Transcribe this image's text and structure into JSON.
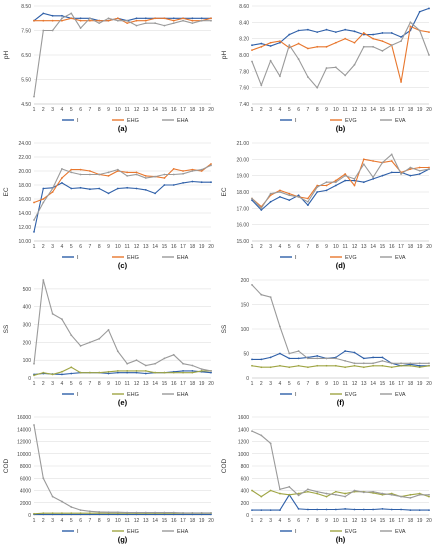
{
  "figure": {
    "panel_labels": [
      "(a)",
      "(b)",
      "(c)",
      "(d)",
      "(e)",
      "(f)",
      "(g)",
      "(h)"
    ]
  },
  "colors": {
    "I": "#2e5fa8",
    "EHG": "#e8772e",
    "EVG": "#e8772e",
    "EHA": "#9a9a9a",
    "EVA": "#9a9a9a",
    "EHG_green": "#9fa544",
    "EVG_green": "#9fa544"
  },
  "chart_data": [
    {
      "type": "line",
      "panel": "(a)",
      "ylabel": "pH",
      "yticks": [
        "4.50",
        "5.50",
        "6.50",
        "7.50",
        "8.50"
      ],
      "ylim": [
        4.5,
        8.5
      ],
      "x": [
        1,
        2,
        3,
        4,
        5,
        6,
        7,
        8,
        9,
        10,
        11,
        12,
        13,
        14,
        15,
        16,
        17,
        18,
        19,
        20
      ],
      "grid": true,
      "legend": "bottom",
      "series": [
        {
          "name": "I",
          "color_key": "I",
          "values": [
            7.9,
            8.2,
            8.1,
            8.1,
            8.0,
            8.0,
            8.0,
            7.9,
            7.9,
            8.0,
            7.9,
            8.0,
            8.0,
            8.0,
            8.0,
            8.0,
            8.0,
            8.0,
            8.0,
            8.0
          ]
        },
        {
          "name": "EHG",
          "color_key": "EHG",
          "values": [
            7.9,
            7.9,
            7.9,
            7.9,
            8.0,
            7.9,
            7.9,
            7.9,
            7.9,
            8.0,
            7.8,
            7.9,
            7.9,
            8.0,
            8.0,
            7.9,
            8.0,
            7.9,
            7.9,
            8.0
          ]
        },
        {
          "name": "EHA",
          "color_key": "EHA",
          "values": [
            4.8,
            7.5,
            7.5,
            8.0,
            8.2,
            7.6,
            8.0,
            7.8,
            8.0,
            7.9,
            7.9,
            7.7,
            7.8,
            7.8,
            7.7,
            7.8,
            7.9,
            7.8,
            7.9,
            7.9
          ]
        }
      ]
    },
    {
      "type": "line",
      "panel": "(b)",
      "ylabel": "pH",
      "yticks": [
        "7.40",
        "7.60",
        "7.80",
        "8.00",
        "8.20",
        "8.40",
        "8.60"
      ],
      "ylim": [
        7.4,
        8.6
      ],
      "x": [
        1,
        2,
        3,
        4,
        5,
        6,
        7,
        8,
        9,
        10,
        11,
        12,
        13,
        14,
        15,
        16,
        17,
        18,
        19,
        20
      ],
      "grid": true,
      "legend": "bottom",
      "series": [
        {
          "name": "I",
          "color_key": "I",
          "values": [
            8.12,
            8.14,
            8.11,
            8.15,
            8.25,
            8.3,
            8.31,
            8.28,
            8.31,
            8.28,
            8.31,
            8.29,
            8.25,
            8.25,
            8.27,
            8.27,
            8.22,
            8.3,
            8.53,
            8.57
          ]
        },
        {
          "name": "EVG",
          "color_key": "EVG",
          "values": [
            8.06,
            8.1,
            8.15,
            8.17,
            8.09,
            8.14,
            8.08,
            8.1,
            8.1,
            8.15,
            8.2,
            8.15,
            8.27,
            8.2,
            8.17,
            8.12,
            7.67,
            8.35,
            8.3,
            8.28
          ]
        },
        {
          "name": "EVA",
          "color_key": "EVA",
          "values": [
            7.92,
            7.63,
            7.93,
            7.74,
            8.12,
            7.95,
            7.73,
            7.6,
            7.84,
            7.85,
            7.75,
            7.88,
            8.1,
            8.1,
            8.05,
            8.12,
            8.17,
            8.4,
            8.3,
            8.0
          ]
        }
      ]
    },
    {
      "type": "line",
      "panel": "(c)",
      "ylabel": "EC",
      "yticks": [
        "10.00",
        "12.00",
        "14.00",
        "16.00",
        "18.00",
        "20.00",
        "22.00",
        "24.00"
      ],
      "ylim": [
        10,
        24
      ],
      "x": [
        1,
        2,
        3,
        4,
        5,
        6,
        7,
        8,
        9,
        10,
        11,
        12,
        13,
        14,
        15,
        16,
        17,
        18,
        19,
        20
      ],
      "grid": true,
      "legend": "bottom",
      "series": [
        {
          "name": "I",
          "color_key": "I",
          "values": [
            11.3,
            17.5,
            17.6,
            18.3,
            17.5,
            17.6,
            17.4,
            17.5,
            16.8,
            17.5,
            17.6,
            17.5,
            17.3,
            16.8,
            18.0,
            18.0,
            18.3,
            18.5,
            18.4,
            18.4
          ]
        },
        {
          "name": "EHG",
          "color_key": "EHG",
          "values": [
            15.5,
            16.0,
            17.0,
            19.0,
            20.2,
            20.2,
            20.0,
            19.5,
            19.3,
            20.0,
            19.8,
            19.8,
            19.3,
            19.2,
            19.0,
            20.3,
            20.0,
            20.2,
            20.0,
            21.0
          ]
        },
        {
          "name": "EHA",
          "color_key": "EHA",
          "values": [
            13.0,
            15.5,
            17.5,
            20.3,
            19.8,
            19.5,
            19.5,
            19.5,
            19.8,
            20.2,
            19.3,
            19.5,
            19.0,
            19.2,
            19.5,
            19.5,
            19.6,
            20.0,
            20.2,
            20.8
          ]
        }
      ]
    },
    {
      "type": "line",
      "panel": "(d)",
      "ylabel": "EC",
      "yticks": [
        "15.00",
        "16.00",
        "17.00",
        "18.00",
        "19.00",
        "20.00",
        "21.00"
      ],
      "ylim": [
        15,
        21
      ],
      "x": [
        1,
        2,
        3,
        4,
        5,
        6,
        7,
        8,
        9,
        10,
        11,
        12,
        13,
        14,
        15,
        16,
        17,
        18,
        19,
        20
      ],
      "grid": true,
      "legend": "bottom",
      "series": [
        {
          "name": "I",
          "color_key": "I",
          "values": [
            17.5,
            16.9,
            17.4,
            17.7,
            17.5,
            17.8,
            17.2,
            18.0,
            18.1,
            18.4,
            18.7,
            18.7,
            18.6,
            18.8,
            19.0,
            19.2,
            19.2,
            19.0,
            19.1,
            19.4
          ]
        },
        {
          "name": "EVG",
          "color_key": "EVG",
          "values": [
            17.6,
            17.1,
            17.8,
            18.1,
            17.9,
            17.7,
            17.6,
            18.4,
            18.4,
            18.7,
            19.1,
            18.4,
            20.0,
            19.9,
            19.8,
            19.9,
            19.2,
            19.4,
            19.5,
            19.5
          ]
        },
        {
          "name": "EVA",
          "color_key": "EVA",
          "values": [
            17.6,
            17.0,
            17.9,
            18.0,
            17.8,
            17.7,
            17.4,
            18.3,
            18.6,
            18.6,
            19.0,
            18.8,
            19.7,
            18.9,
            19.8,
            20.3,
            19.1,
            19.5,
            19.3,
            19.4
          ]
        }
      ]
    },
    {
      "type": "line",
      "panel": "(e)",
      "ylabel": "SS",
      "yticks": [
        "0",
        "100",
        "200",
        "300",
        "400",
        "500"
      ],
      "ylim": [
        0,
        550
      ],
      "x": [
        1,
        2,
        3,
        4,
        5,
        6,
        7,
        8,
        9,
        10,
        11,
        12,
        13,
        14,
        15,
        16,
        17,
        18,
        19,
        20
      ],
      "grid": true,
      "legend": "bottom",
      "series": [
        {
          "name": "I",
          "color_key": "I",
          "values": [
            20,
            25,
            22,
            20,
            25,
            30,
            30,
            30,
            25,
            30,
            30,
            30,
            25,
            30,
            30,
            35,
            40,
            40,
            35,
            30
          ]
        },
        {
          "name": "EHG",
          "color_key": "EHG_green",
          "values": [
            15,
            30,
            20,
            35,
            60,
            30,
            30,
            30,
            35,
            40,
            40,
            40,
            40,
            30,
            30,
            30,
            30,
            30,
            40,
            40
          ]
        },
        {
          "name": "EHA",
          "color_key": "EHA",
          "values": [
            80,
            620,
            360,
            330,
            240,
            180,
            200,
            220,
            270,
            150,
            80,
            100,
            70,
            80,
            110,
            130,
            80,
            70,
            50,
            40
          ]
        }
      ]
    },
    {
      "type": "line",
      "panel": "(f)",
      "ylabel": "SS",
      "yticks": [
        "0",
        "50",
        "100",
        "150",
        "200"
      ],
      "ylim": [
        0,
        200
      ],
      "x": [
        1,
        2,
        3,
        4,
        5,
        6,
        7,
        8,
        9,
        10,
        11,
        12,
        13,
        14,
        15,
        16,
        17,
        18,
        19,
        20
      ],
      "grid": true,
      "legend": "bottom",
      "series": [
        {
          "name": "I",
          "color_key": "I",
          "values": [
            38,
            38,
            42,
            50,
            40,
            40,
            42,
            45,
            40,
            42,
            55,
            52,
            40,
            42,
            42,
            30,
            25,
            28,
            25,
            25
          ]
        },
        {
          "name": "EVG",
          "color_key": "EVG_green",
          "values": [
            25,
            22,
            22,
            25,
            22,
            25,
            22,
            25,
            25,
            25,
            22,
            25,
            22,
            25,
            25,
            22,
            25,
            25,
            22,
            25
          ]
        },
        {
          "name": "EVA",
          "color_key": "EVA",
          "values": [
            190,
            170,
            165,
            105,
            50,
            55,
            40,
            40,
            40,
            40,
            35,
            30,
            30,
            30,
            35,
            30,
            30,
            30,
            30,
            30
          ]
        }
      ]
    },
    {
      "type": "line",
      "panel": "(g)",
      "ylabel": "COD",
      "yticks": [
        "0",
        "2000",
        "4000",
        "6000",
        "8000",
        "10000",
        "12000",
        "14000",
        "16000"
      ],
      "ylim": [
        0,
        16000
      ],
      "x": [
        1,
        2,
        3,
        4,
        5,
        6,
        7,
        8,
        9,
        10,
        11,
        12,
        13,
        14,
        15,
        16,
        17,
        18,
        19,
        20
      ],
      "grid": true,
      "legend": "bottom",
      "series": [
        {
          "name": "I",
          "color_key": "I",
          "values": [
            100,
            100,
            100,
            100,
            100,
            100,
            100,
            100,
            100,
            100,
            100,
            100,
            100,
            100,
            100,
            100,
            100,
            100,
            100,
            100
          ]
        },
        {
          "name": "EHG",
          "color_key": "EHG_green",
          "values": [
            200,
            300,
            300,
            300,
            300,
            300,
            300,
            300,
            300,
            300,
            300,
            300,
            300,
            300,
            300,
            300,
            300,
            300,
            300,
            300
          ]
        },
        {
          "name": "EHA",
          "color_key": "EHA",
          "values": [
            14700,
            6000,
            3000,
            2200,
            1300,
            800,
            600,
            500,
            450,
            450,
            400,
            400,
            400,
            400,
            400,
            400,
            350,
            350,
            350,
            350
          ]
        }
      ]
    },
    {
      "type": "line",
      "panel": "(h)",
      "ylabel": "COD",
      "yticks": [
        "0",
        "200",
        "400",
        "600",
        "800",
        "1000",
        "1200",
        "1400",
        "1600"
      ],
      "ylim": [
        0,
        1600
      ],
      "x": [
        1,
        2,
        3,
        4,
        5,
        6,
        7,
        8,
        9,
        10,
        11,
        12,
        13,
        14,
        15,
        16,
        17,
        18,
        19,
        20
      ],
      "grid": true,
      "legend": "bottom",
      "series": [
        {
          "name": "I",
          "color_key": "I",
          "values": [
            80,
            80,
            80,
            80,
            330,
            100,
            90,
            90,
            90,
            90,
            100,
            90,
            90,
            90,
            100,
            90,
            90,
            80,
            80,
            80
          ]
        },
        {
          "name": "EVG",
          "color_key": "EVG_green",
          "values": [
            400,
            300,
            400,
            350,
            330,
            350,
            380,
            350,
            300,
            380,
            350,
            380,
            380,
            360,
            330,
            350,
            300,
            330,
            350,
            300
          ]
        },
        {
          "name": "EVA",
          "color_key": "EVA",
          "values": [
            1370,
            1300,
            1170,
            420,
            460,
            320,
            420,
            380,
            350,
            330,
            300,
            400,
            370,
            380,
            350,
            330,
            300,
            280,
            330,
            330
          ]
        }
      ]
    }
  ]
}
